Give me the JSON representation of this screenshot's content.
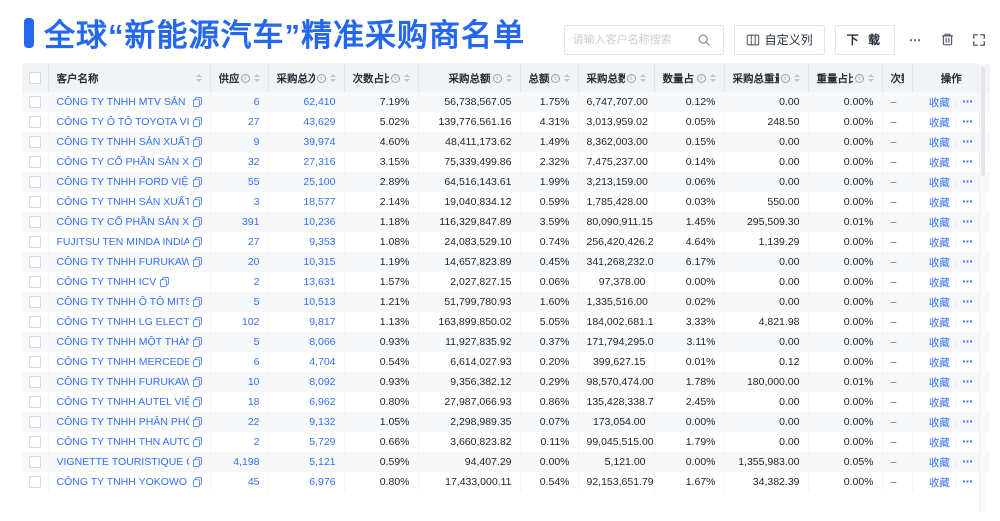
{
  "page": {
    "title": "全球“新能源汽车”精准采购商名单",
    "accent_color": "#2468F2",
    "link_color": "#3370FF"
  },
  "toolbar": {
    "search_placeholder": "请输入客户名称搜索",
    "search_icon": "search-icon",
    "customize_columns_label": "自定义列",
    "customize_columns_icon": "columns-icon",
    "download_label": "下 载",
    "more_label": "⋯",
    "delete_icon": "trash-icon",
    "fullscreen_icon": "expand-icon"
  },
  "table": {
    "columns": [
      {
        "type": "checkbox"
      },
      {
        "key": "name",
        "label": "客户名称",
        "type": "name",
        "sortable": true,
        "info": false
      },
      {
        "key": "suppliers",
        "label": "供应商",
        "type": "num",
        "link": true,
        "sortable": true,
        "info": true
      },
      {
        "key": "times",
        "label": "采购总次数",
        "type": "num",
        "link": true,
        "sortable": true,
        "info": true
      },
      {
        "key": "times_pct",
        "label": "次数占比",
        "type": "num",
        "sortable": true,
        "info": true
      },
      {
        "key": "amount",
        "label": "采购总额",
        "type": "num",
        "sortable": true,
        "info": true
      },
      {
        "key": "amount_pct",
        "label": "总额占比",
        "type": "num",
        "sortable": true,
        "info": true
      },
      {
        "key": "qty",
        "label": "采购总数量",
        "type": "num",
        "sortable": true,
        "info": true
      },
      {
        "key": "qty_pct",
        "label": "数量占比",
        "type": "num",
        "sortable": true,
        "info": true
      },
      {
        "key": "weight",
        "label": "采购总重量",
        "type": "num",
        "sortable": true,
        "info": true
      },
      {
        "key": "weight_pct",
        "label": "重量占比",
        "type": "num",
        "sortable": true,
        "info": true
      },
      {
        "key": "trend",
        "label": "次数趋势",
        "type": "text",
        "sortable": false,
        "info": false
      },
      {
        "key": "op",
        "label": "操作",
        "type": "op",
        "sortable": false,
        "info": false
      }
    ],
    "op_labels": {
      "favorite": "收藏",
      "divider": "|",
      "more": "⋯"
    },
    "rows": [
      {
        "name": "CÔNG TY TNHH MTV SẢN XUẤ...",
        "suppliers": "6",
        "times": "62,410",
        "times_pct": "7.19%",
        "amount": "56,738,567.05",
        "amount_pct": "1.75%",
        "qty": "6,747,707.00",
        "qty_pct": "0.12%",
        "weight": "0.00",
        "weight_pct": "0.00%",
        "trend": "–"
      },
      {
        "name": "CÔNG TY Ô TÔ TOYOTA VIỆT ...",
        "suppliers": "27",
        "times": "43,629",
        "times_pct": "5.02%",
        "amount": "139,776,561.16",
        "amount_pct": "4.31%",
        "qty": "3,013,959.02",
        "qty_pct": "0.05%",
        "weight": "248.50",
        "weight_pct": "0.00%",
        "trend": "–"
      },
      {
        "name": "CÔNG TY TNHH SẢN XUẤT VÀ ...",
        "suppliers": "9",
        "times": "39,974",
        "times_pct": "4.60%",
        "amount": "48,411,173.62",
        "amount_pct": "1.49%",
        "qty": "8,362,003.00",
        "qty_pct": "0.15%",
        "weight": "0.00",
        "weight_pct": "0.00%",
        "trend": "–"
      },
      {
        "name": "CÔNG TY CỔ PHẦN SẢN XUẤT...",
        "suppliers": "32",
        "times": "27,316",
        "times_pct": "3.15%",
        "amount": "75,339,499.86",
        "amount_pct": "2.32%",
        "qty": "7,475,237.00",
        "qty_pct": "0.14%",
        "weight": "0.00",
        "weight_pct": "0.00%",
        "trend": "–"
      },
      {
        "name": "CÔNG TY TNHH FORD VIỆT NAM",
        "suppliers": "55",
        "times": "25,100",
        "times_pct": "2.89%",
        "amount": "64,516,143.61",
        "amount_pct": "1.99%",
        "qty": "3,213,159.00",
        "qty_pct": "0.06%",
        "weight": "0.00",
        "weight_pct": "0.00%",
        "trend": "–"
      },
      {
        "name": "CÔNG TY TNHH SẢN XUẤT VÀ ...",
        "suppliers": "3",
        "times": "18,577",
        "times_pct": "2.14%",
        "amount": "19,040,834.12",
        "amount_pct": "0.59%",
        "qty": "1,785,428.00",
        "qty_pct": "0.03%",
        "weight": "550.00",
        "weight_pct": "0.00%",
        "trend": "–"
      },
      {
        "name": "CÔNG TY CỔ PHẦN SẢN XUẤT...",
        "suppliers": "391",
        "times": "10,236",
        "times_pct": "1.18%",
        "amount": "116,329,847.89",
        "amount_pct": "3.59%",
        "qty": "80,090,911.15",
        "qty_pct": "1.45%",
        "weight": "295,509.30",
        "weight_pct": "0.01%",
        "trend": "–"
      },
      {
        "name": "FUJITSU TEN MINDA INDIA PVT...",
        "suppliers": "27",
        "times": "9,353",
        "times_pct": "1.08%",
        "amount": "24,083,529.10",
        "amount_pct": "0.74%",
        "qty": "256,420,426.29",
        "qty_pct": "4.64%",
        "weight": "1,139.29",
        "weight_pct": "0.00%",
        "trend": "–"
      },
      {
        "name": "CÔNG TY TNHH FURUKAWA A...",
        "suppliers": "20",
        "times": "10,315",
        "times_pct": "1.19%",
        "amount": "14,657,823.89",
        "amount_pct": "0.45%",
        "qty": "341,268,232.00",
        "qty_pct": "6.17%",
        "weight": "0.00",
        "weight_pct": "0.00%",
        "trend": "–"
      },
      {
        "name": "CÔNG TY TNHH ICV",
        "suppliers": "2",
        "times": "13,631",
        "times_pct": "1.57%",
        "amount": "2,027,827.15",
        "amount_pct": "0.06%",
        "qty": "97,378.00",
        "qty_pct": "0.00%",
        "weight": "0.00",
        "weight_pct": "0.00%",
        "trend": "–"
      },
      {
        "name": "CÔNG TY TNHH Ô TÔ MITSUBI...",
        "suppliers": "5",
        "times": "10,513",
        "times_pct": "1.21%",
        "amount": "51,799,780.93",
        "amount_pct": "1.60%",
        "qty": "1,335,516.00",
        "qty_pct": "0.02%",
        "weight": "0.00",
        "weight_pct": "0.00%",
        "trend": "–"
      },
      {
        "name": "CÔNG TY TNHH LG ELECTRON...",
        "suppliers": "102",
        "times": "9,817",
        "times_pct": "1.13%",
        "amount": "163,899,850.02",
        "amount_pct": "5.05%",
        "qty": "184,002,681.15",
        "qty_pct": "3.33%",
        "weight": "4,821.98",
        "weight_pct": "0.00%",
        "trend": "–"
      },
      {
        "name": "CÔNG TY TNHH MỘT THÀNH V...",
        "suppliers": "5",
        "times": "8,066",
        "times_pct": "0.93%",
        "amount": "11,927,835.92",
        "amount_pct": "0.37%",
        "qty": "171,794,295.00",
        "qty_pct": "3.11%",
        "weight": "0.00",
        "weight_pct": "0.00%",
        "trend": "–"
      },
      {
        "name": "CÔNG TY TNHH MERCEDES-B...",
        "suppliers": "6",
        "times": "4,704",
        "times_pct": "0.54%",
        "amount": "6,614,027.93",
        "amount_pct": "0.20%",
        "qty": "399,627.15",
        "qty_pct": "0.01%",
        "weight": "0.12",
        "weight_pct": "0.00%",
        "trend": "–"
      },
      {
        "name": "CÔNG TY TNHH FURUKAWA A...",
        "suppliers": "10",
        "times": "8,092",
        "times_pct": "0.93%",
        "amount": "9,356,382.12",
        "amount_pct": "0.29%",
        "qty": "98,570,474.00",
        "qty_pct": "1.78%",
        "weight": "180,000.00",
        "weight_pct": "0.01%",
        "trend": "–"
      },
      {
        "name": "CÔNG TY TNHH AUTEL VIỆT N...",
        "suppliers": "18",
        "times": "6,962",
        "times_pct": "0.80%",
        "amount": "27,987,066.93",
        "amount_pct": "0.86%",
        "qty": "135,428,338.71",
        "qty_pct": "2.45%",
        "weight": "0.00",
        "weight_pct": "0.00%",
        "trend": "–"
      },
      {
        "name": "CÔNG TY TNHH PHÂN PHỐI T...",
        "suppliers": "22",
        "times": "9,132",
        "times_pct": "1.05%",
        "amount": "2,298,989.35",
        "amount_pct": "0.07%",
        "qty": "173,054.00",
        "qty_pct": "0.00%",
        "weight": "0.00",
        "weight_pct": "0.00%",
        "trend": "–"
      },
      {
        "name": "CÔNG TY TNHH THN AUTOPAR...",
        "suppliers": "2",
        "times": "5,729",
        "times_pct": "0.66%",
        "amount": "3,660,823.82",
        "amount_pct": "0.11%",
        "qty": "99,045,515.00",
        "qty_pct": "1.79%",
        "weight": "0.00",
        "weight_pct": "0.00%",
        "trend": "–"
      },
      {
        "name": "VIGNETTE TOURISTIQUE G UNI...",
        "suppliers": "4,198",
        "times": "5,121",
        "times_pct": "0.59%",
        "amount": "94,407.29",
        "amount_pct": "0.00%",
        "qty": "5,121.00",
        "qty_pct": "0.00%",
        "weight": "1,355,983.00",
        "weight_pct": "0.05%",
        "trend": "–"
      },
      {
        "name": "CÔNG TY TNHH YOKOWO VIỆT...",
        "suppliers": "45",
        "times": "6,976",
        "times_pct": "0.80%",
        "amount": "17,433,000.11",
        "amount_pct": "0.54%",
        "qty": "92,153,651.79",
        "qty_pct": "1.67%",
        "weight": "34,382.39",
        "weight_pct": "0.00%",
        "trend": "–"
      }
    ]
  }
}
